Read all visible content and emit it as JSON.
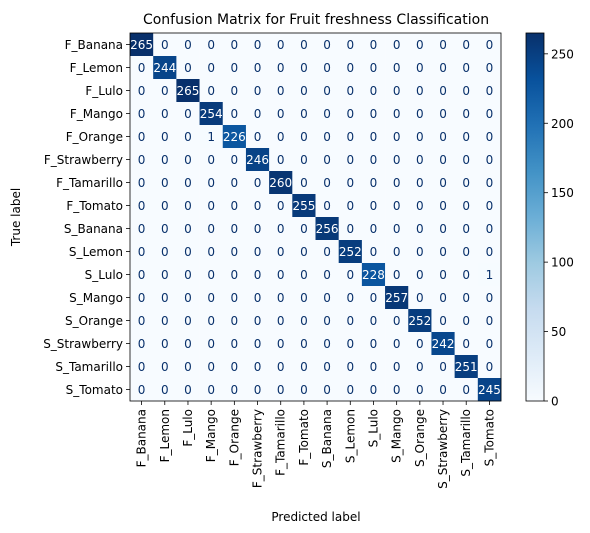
{
  "chart_data": {
    "type": "heatmap",
    "title": "Confusion Matrix for Fruit freshness Classification",
    "xlabel": "Predicted label",
    "ylabel": "True label",
    "labels": [
      "F_Banana",
      "F_Lemon",
      "F_Lulo",
      "F_Mango",
      "F_Orange",
      "F_Strawberry",
      "F_Tamarillo",
      "F_Tomato",
      "S_Banana",
      "S_Lemon",
      "S_Lulo",
      "S_Mango",
      "S_Orange",
      "S_Strawberry",
      "S_Tamarillo",
      "S_Tomato"
    ],
    "matrix": [
      [
        265,
        0,
        0,
        0,
        0,
        0,
        0,
        0,
        0,
        0,
        0,
        0,
        0,
        0,
        0,
        0
      ],
      [
        0,
        244,
        0,
        0,
        0,
        0,
        0,
        0,
        0,
        0,
        0,
        0,
        0,
        0,
        0,
        0
      ],
      [
        0,
        0,
        265,
        0,
        0,
        0,
        0,
        0,
        0,
        0,
        0,
        0,
        0,
        0,
        0,
        0
      ],
      [
        0,
        0,
        0,
        254,
        0,
        0,
        0,
        0,
        0,
        0,
        0,
        0,
        0,
        0,
        0,
        0
      ],
      [
        0,
        0,
        0,
        1,
        226,
        0,
        0,
        0,
        0,
        0,
        0,
        0,
        0,
        0,
        0,
        0
      ],
      [
        0,
        0,
        0,
        0,
        0,
        246,
        0,
        0,
        0,
        0,
        0,
        0,
        0,
        0,
        0,
        0
      ],
      [
        0,
        0,
        0,
        0,
        0,
        0,
        260,
        0,
        0,
        0,
        0,
        0,
        0,
        0,
        0,
        0
      ],
      [
        0,
        0,
        0,
        0,
        0,
        0,
        0,
        255,
        0,
        0,
        0,
        0,
        0,
        0,
        0,
        0
      ],
      [
        0,
        0,
        0,
        0,
        0,
        0,
        0,
        0,
        256,
        0,
        0,
        0,
        0,
        0,
        0,
        0
      ],
      [
        0,
        0,
        0,
        0,
        0,
        0,
        0,
        0,
        0,
        252,
        0,
        0,
        0,
        0,
        0,
        0
      ],
      [
        0,
        0,
        0,
        0,
        0,
        0,
        0,
        0,
        0,
        0,
        228,
        0,
        0,
        0,
        0,
        1
      ],
      [
        0,
        0,
        0,
        0,
        0,
        0,
        0,
        0,
        0,
        0,
        0,
        257,
        0,
        0,
        0,
        0
      ],
      [
        0,
        0,
        0,
        0,
        0,
        0,
        0,
        0,
        0,
        0,
        0,
        0,
        252,
        0,
        0,
        0
      ],
      [
        0,
        0,
        0,
        0,
        0,
        0,
        0,
        0,
        0,
        0,
        0,
        0,
        0,
        242,
        0,
        0
      ],
      [
        0,
        0,
        0,
        0,
        0,
        0,
        0,
        0,
        0,
        0,
        0,
        0,
        0,
        0,
        251,
        0
      ],
      [
        0,
        0,
        0,
        0,
        0,
        0,
        0,
        0,
        0,
        0,
        0,
        0,
        0,
        0,
        0,
        245
      ]
    ],
    "colorbar": {
      "min": 0,
      "max": 265,
      "ticks": [
        0,
        50,
        100,
        150,
        200,
        250
      ],
      "colormap": "Blues",
      "low_color": "#f7fbff",
      "high_color": "#08306b"
    },
    "text_colors": {
      "light": "#ffffff",
      "dark": "#08306b"
    },
    "grid": false
  }
}
